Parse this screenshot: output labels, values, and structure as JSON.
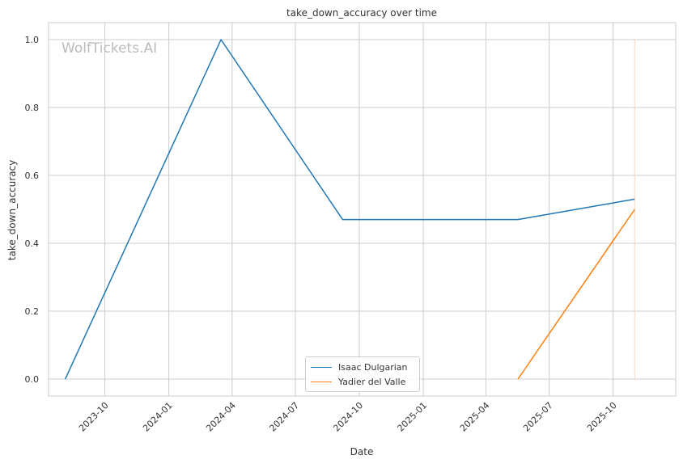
{
  "chart_data": {
    "type": "line",
    "title": "take_down_accuracy over time",
    "xlabel": "Date",
    "ylabel": "take_down_accuracy",
    "watermark": "WolfTickets.AI",
    "xlim": [
      "2023-07-12",
      "2025-12-30"
    ],
    "ylim": [
      -0.05,
      1.05
    ],
    "x_ticks": [
      "2023-10-01",
      "2024-01-01",
      "2024-04-01",
      "2024-07-01",
      "2024-10-01",
      "2025-01-01",
      "2025-04-01",
      "2025-07-01",
      "2025-10-01"
    ],
    "x_tick_labels": [
      "2023-10",
      "2024-01",
      "2024-04",
      "2024-07",
      "2024-10",
      "2025-01",
      "2025-04",
      "2025-07",
      "2025-10"
    ],
    "y_ticks": [
      0.0,
      0.2,
      0.4,
      0.6,
      0.8,
      1.0
    ],
    "y_tick_labels": [
      "0.0",
      "0.2",
      "0.4",
      "0.6",
      "0.8",
      "1.0"
    ],
    "grid": true,
    "legend_position": "bottom-center",
    "series": [
      {
        "name": "Isaac Dulgarian",
        "color": "#1f77b4",
        "x": [
          "2023-08-05",
          "2024-03-16",
          "2024-09-07",
          "2025-05-17",
          "2025-11-01"
        ],
        "y": [
          0.0,
          1.0,
          0.47,
          0.47,
          0.53
        ]
      },
      {
        "name": "Yadier del Valle",
        "color": "#ff7f0e",
        "x": [
          "2025-05-17",
          "2025-11-01"
        ],
        "y": [
          0.0,
          0.5
        ]
      }
    ],
    "vline": {
      "x": "2025-11-01",
      "y_range": [
        0.0,
        1.0
      ],
      "color": "#f5d9c4"
    }
  }
}
